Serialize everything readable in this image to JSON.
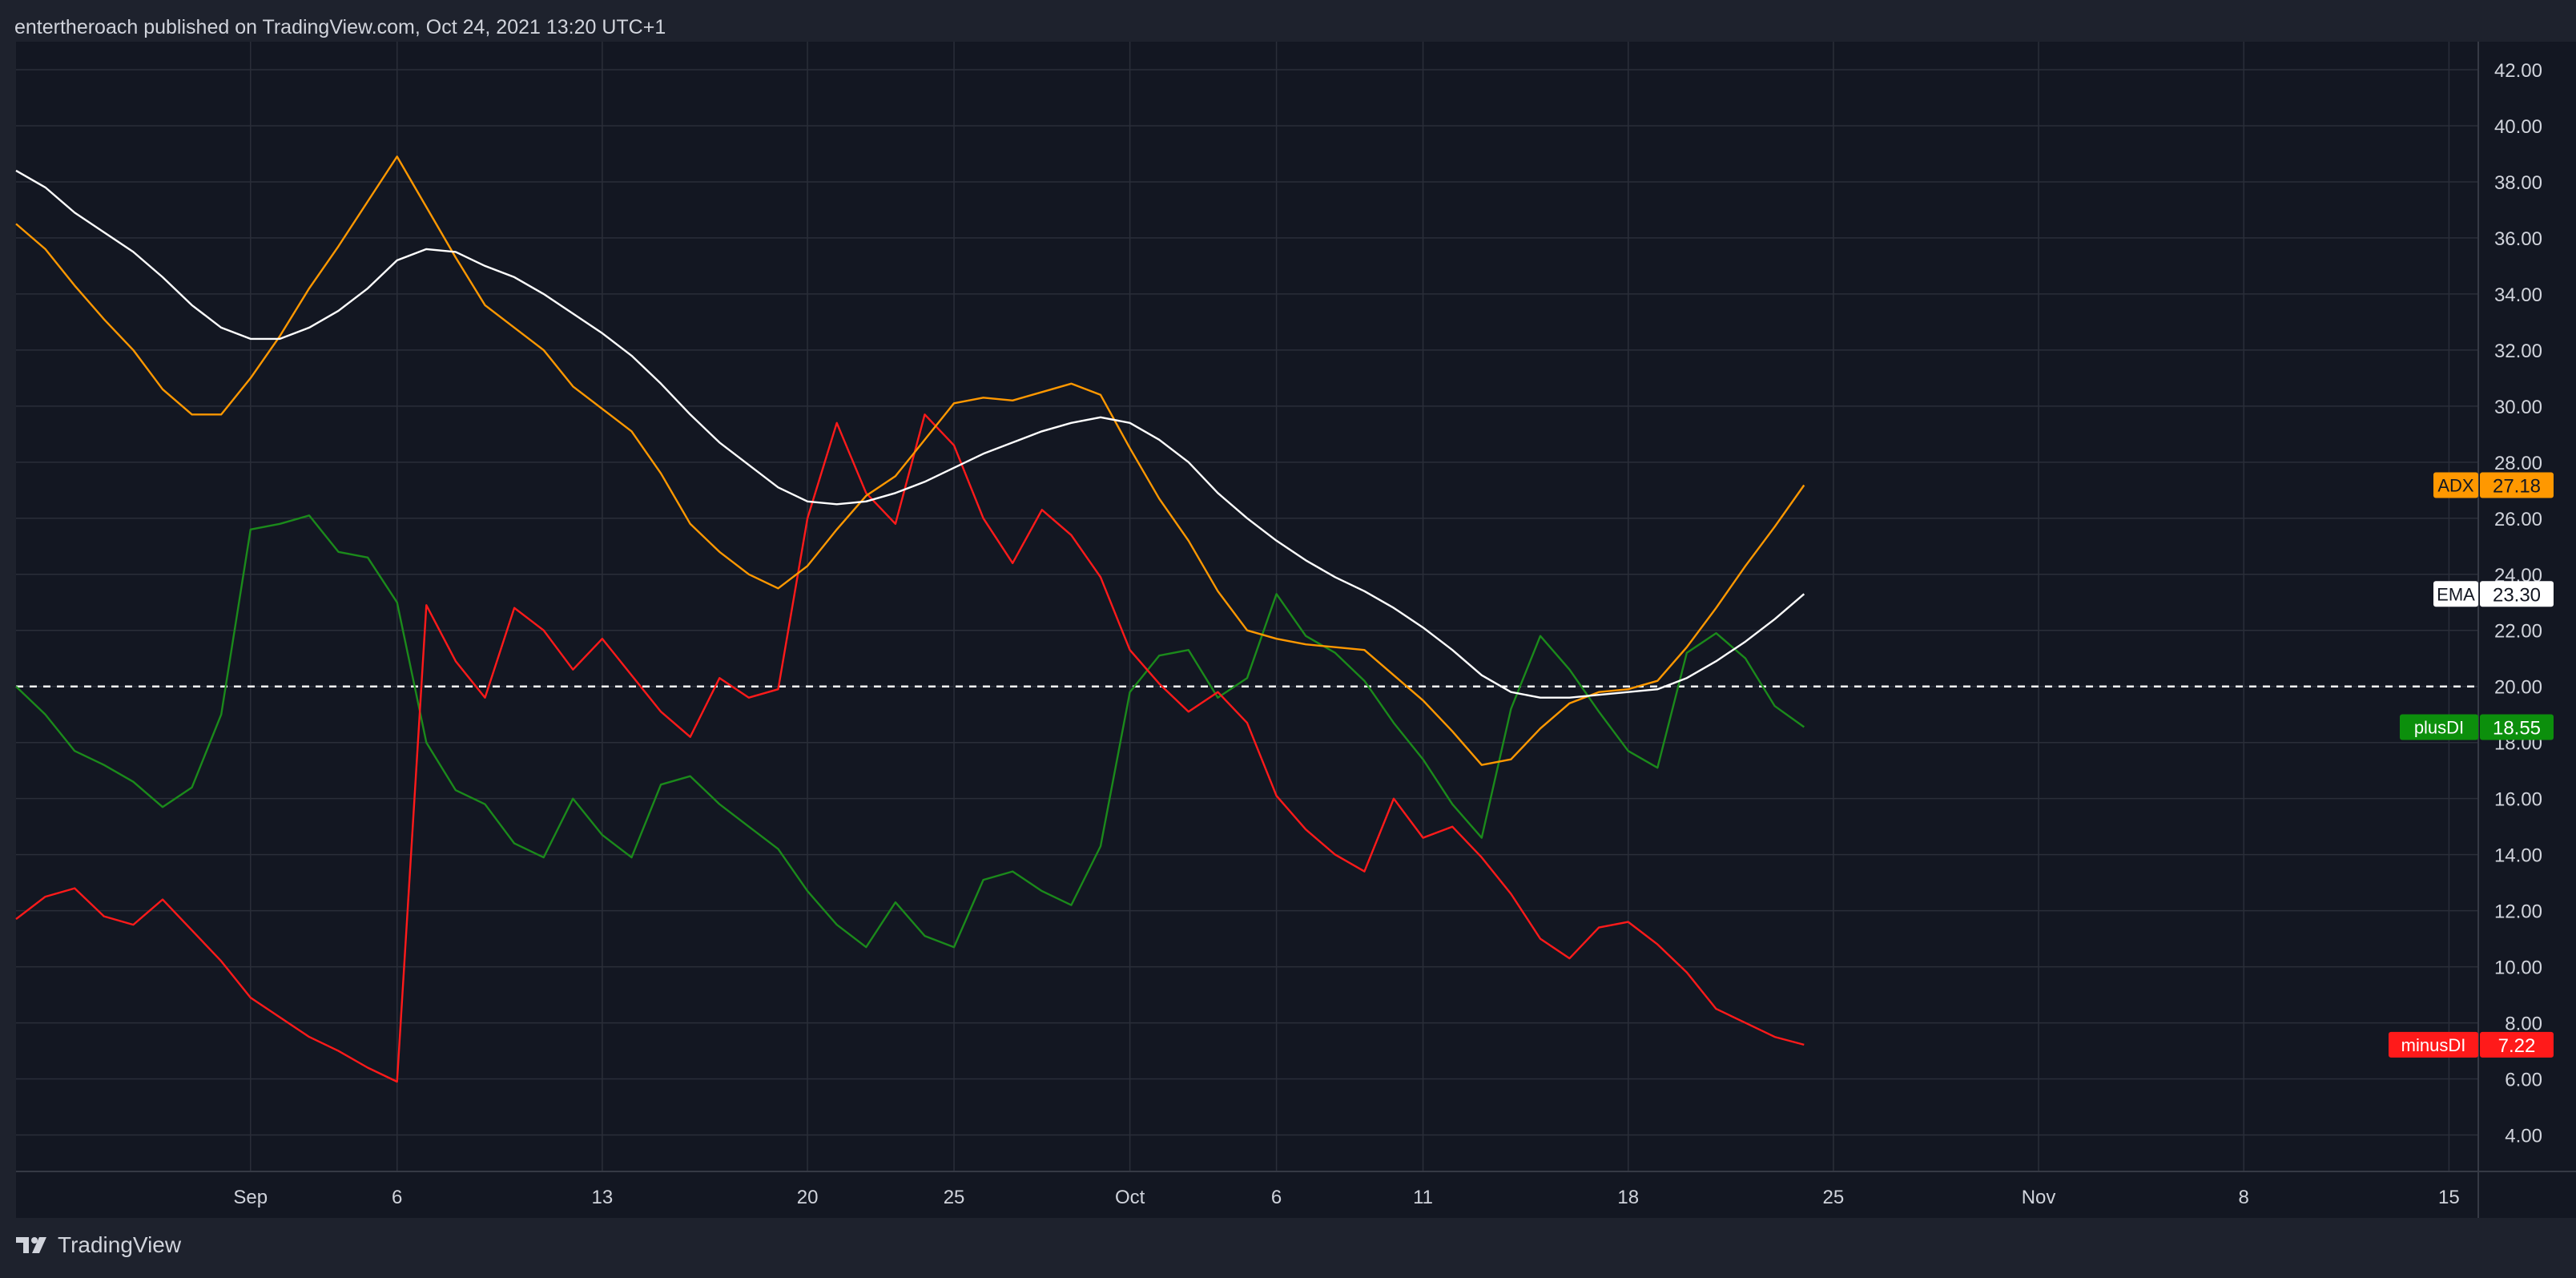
{
  "header": {
    "publisher": "entertheroach published on TradingView.com, Oct 24, 2021 13:20 UTC+1"
  },
  "footer": {
    "brand": "TradingView",
    "logo_icon": "tradingview-logo-icon"
  },
  "colors": {
    "background": "#131722",
    "frame": "#1e222d",
    "grid": "#2a2e39",
    "text": "#d1d4dc",
    "adx": "#ff9800",
    "ema": "#ffffff",
    "plusDI": "#089981",
    "plusDI_line": "#1b8a1b",
    "minusDI": "#ff1a1a",
    "hline": "#ffffff"
  },
  "chart_data": {
    "type": "line",
    "title": "",
    "xlabel": "",
    "ylabel": "",
    "ylim": [
      2.7,
      43.0
    ],
    "grid": true,
    "y_ticks": [
      "4.00",
      "6.00",
      "8.00",
      "10.00",
      "12.00",
      "14.00",
      "16.00",
      "18.00",
      "20.00",
      "22.00",
      "24.00",
      "26.00",
      "28.00",
      "30.00",
      "32.00",
      "34.00",
      "36.00",
      "38.00",
      "40.00",
      "42.00"
    ],
    "x_ticks": [
      {
        "label": "Sep",
        "x": "2021-09-01"
      },
      {
        "label": "6",
        "x": "2021-09-06"
      },
      {
        "label": "13",
        "x": "2021-09-13"
      },
      {
        "label": "20",
        "x": "2021-09-20"
      },
      {
        "label": "25",
        "x": "2021-09-25"
      },
      {
        "label": "Oct",
        "x": "2021-10-01"
      },
      {
        "label": "6",
        "x": "2021-10-06"
      },
      {
        "label": "11",
        "x": "2021-10-11"
      },
      {
        "label": "18",
        "x": "2021-10-18"
      },
      {
        "label": "25",
        "x": "2021-10-25"
      },
      {
        "label": "Nov",
        "x": "2021-11-01"
      },
      {
        "label": "8",
        "x": "2021-11-08"
      },
      {
        "label": "15",
        "x": "2021-11-15"
      }
    ],
    "x_range": [
      "2021-08-24",
      "2021-11-16"
    ],
    "hline": {
      "value": 20,
      "style": "dashed"
    },
    "x": [
      "2021-08-24",
      "2021-08-25",
      "2021-08-26",
      "2021-08-27",
      "2021-08-28",
      "2021-08-29",
      "2021-08-30",
      "2021-08-31",
      "2021-09-01",
      "2021-09-02",
      "2021-09-03",
      "2021-09-04",
      "2021-09-05",
      "2021-09-06",
      "2021-09-07",
      "2021-09-08",
      "2021-09-09",
      "2021-09-10",
      "2021-09-11",
      "2021-09-12",
      "2021-09-13",
      "2021-09-14",
      "2021-09-15",
      "2021-09-16",
      "2021-09-17",
      "2021-09-18",
      "2021-09-19",
      "2021-09-20",
      "2021-09-21",
      "2021-09-22",
      "2021-09-23",
      "2021-09-24",
      "2021-09-25",
      "2021-09-26",
      "2021-09-27",
      "2021-09-28",
      "2021-09-29",
      "2021-09-30",
      "2021-10-01",
      "2021-10-02",
      "2021-10-03",
      "2021-10-04",
      "2021-10-05",
      "2021-10-06",
      "2021-10-07",
      "2021-10-08",
      "2021-10-09",
      "2021-10-10",
      "2021-10-11",
      "2021-10-12",
      "2021-10-13",
      "2021-10-14",
      "2021-10-15",
      "2021-10-16",
      "2021-10-17",
      "2021-10-18",
      "2021-10-19",
      "2021-10-20",
      "2021-10-21",
      "2021-10-22",
      "2021-10-23",
      "2021-10-24"
    ],
    "series": [
      {
        "name": "ADX",
        "color": "#ff9800",
        "values": [
          36.5,
          35.6,
          34.3,
          33.1,
          32.0,
          30.6,
          29.7,
          29.7,
          31.0,
          32.5,
          34.2,
          35.7,
          37.3,
          38.9,
          37.1,
          35.3,
          33.6,
          32.8,
          32.0,
          30.7,
          29.9,
          29.1,
          27.6,
          25.8,
          24.8,
          24.0,
          23.5,
          24.3,
          25.6,
          26.8,
          27.5,
          28.8,
          30.1,
          30.3,
          30.2,
          30.5,
          30.8,
          30.4,
          28.5,
          26.7,
          25.2,
          23.4,
          22.0,
          21.7,
          21.5,
          21.4,
          21.3,
          20.4,
          19.5,
          18.4,
          17.2,
          17.4,
          18.5,
          19.4,
          19.8,
          19.9,
          20.2,
          21.4,
          22.8,
          24.3,
          25.7,
          27.18
        ]
      },
      {
        "name": "EMA",
        "color": "#ffffff",
        "values": [
          38.4,
          37.8,
          36.9,
          36.2,
          35.5,
          34.6,
          33.6,
          32.8,
          32.4,
          32.4,
          32.8,
          33.4,
          34.2,
          35.2,
          35.6,
          35.5,
          35.0,
          34.6,
          34.0,
          33.3,
          32.6,
          31.8,
          30.8,
          29.7,
          28.7,
          27.9,
          27.1,
          26.6,
          26.5,
          26.6,
          26.9,
          27.3,
          27.8,
          28.3,
          28.7,
          29.1,
          29.4,
          29.6,
          29.4,
          28.8,
          28.0,
          26.9,
          26.0,
          25.2,
          24.5,
          23.9,
          23.4,
          22.8,
          22.1,
          21.3,
          20.4,
          19.8,
          19.6,
          19.6,
          19.7,
          19.8,
          19.9,
          20.3,
          20.9,
          21.6,
          22.4,
          23.3
        ]
      },
      {
        "name": "plusDI",
        "color": "#1b8a1b",
        "values": [
          20.0,
          19.0,
          17.7,
          17.2,
          16.6,
          15.7,
          16.4,
          19.0,
          25.6,
          25.8,
          26.1,
          24.8,
          24.6,
          23.0,
          18.0,
          16.3,
          15.8,
          14.4,
          13.9,
          16.0,
          14.7,
          13.9,
          16.5,
          16.8,
          15.8,
          15.0,
          14.2,
          12.7,
          11.5,
          10.7,
          12.3,
          11.1,
          10.7,
          13.1,
          13.4,
          12.7,
          12.2,
          14.3,
          19.8,
          21.1,
          21.3,
          19.6,
          20.3,
          23.3,
          21.8,
          21.2,
          20.2,
          18.7,
          17.4,
          15.8,
          14.6,
          19.2,
          21.8,
          20.6,
          19.1,
          17.7,
          17.1,
          21.2,
          21.9,
          21.0,
          19.3,
          18.55
        ]
      },
      {
        "name": "minusDI",
        "color": "#ff1a1a",
        "values": [
          11.7,
          12.5,
          12.8,
          11.8,
          11.5,
          12.4,
          11.3,
          10.2,
          8.9,
          8.2,
          7.5,
          7.0,
          6.4,
          5.9,
          22.9,
          20.9,
          19.6,
          22.8,
          22.0,
          20.6,
          21.7,
          20.4,
          19.1,
          18.2,
          20.3,
          19.6,
          19.9,
          26.0,
          29.4,
          26.9,
          25.8,
          29.7,
          28.6,
          26.0,
          24.4,
          26.3,
          25.4,
          23.9,
          21.3,
          20.1,
          19.1,
          19.8,
          18.7,
          16.1,
          14.9,
          14.0,
          13.4,
          16.0,
          14.6,
          15.0,
          13.9,
          12.6,
          11.0,
          10.3,
          11.4,
          11.6,
          10.8,
          9.8,
          8.5,
          8.0,
          7.5,
          7.22
        ]
      }
    ],
    "value_labels": [
      {
        "series": "ADX",
        "name": "ADX",
        "value": "27.18",
        "y": 27.18
      },
      {
        "series": "EMA",
        "name": "EMA",
        "value": "23.30",
        "y": 23.3
      },
      {
        "series": "plusDI",
        "name": "plusDI",
        "value": "18.55",
        "y": 18.55
      },
      {
        "series": "minusDI",
        "name": "minusDI",
        "value": "7.22",
        "y": 7.22
      }
    ]
  }
}
